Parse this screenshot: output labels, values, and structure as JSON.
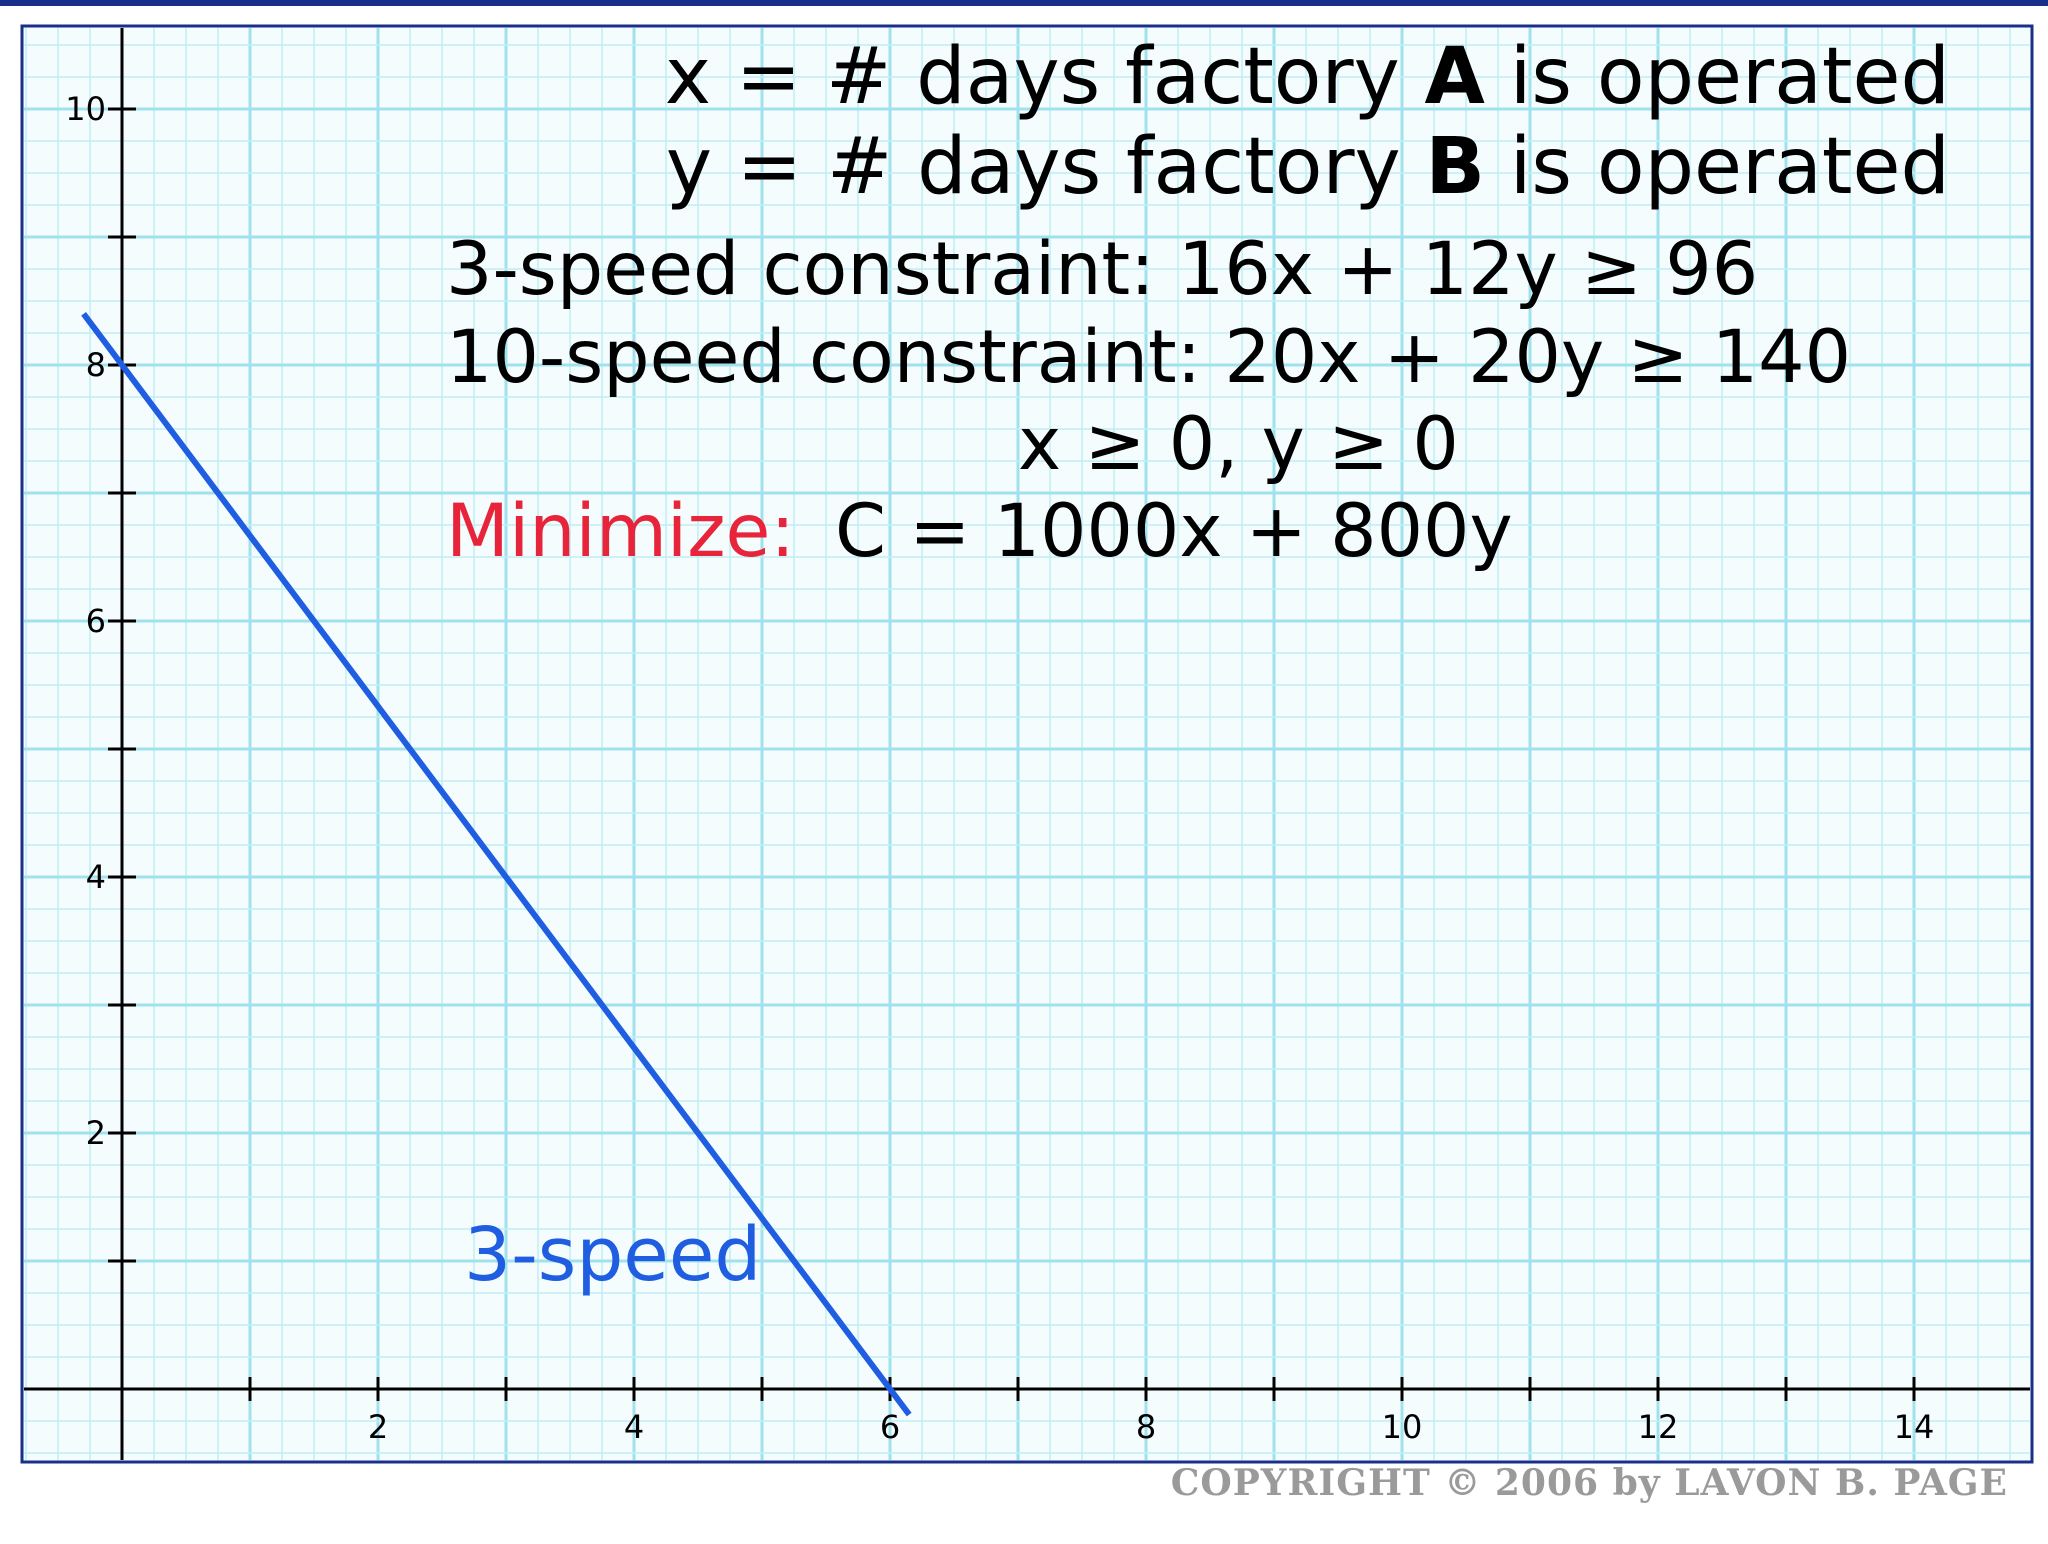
{
  "chart_data": {
    "type": "line",
    "x_ticks": [
      2,
      4,
      6,
      8,
      10,
      12,
      14
    ],
    "y_ticks": [
      2,
      4,
      6,
      8,
      10
    ],
    "xlim": [
      -0.8,
      14.9
    ],
    "ylim": [
      -0.6,
      10.6
    ],
    "grid": true,
    "series": [
      {
        "name": "3-speed",
        "color": "#1f5ee0",
        "points": [
          [
            -0.3,
            8.4
          ],
          [
            6.15,
            -0.2
          ]
        ]
      }
    ],
    "annotations": {
      "var_x": {
        "pre": "x = # days factory ",
        "bold": "A",
        "post": " is operated"
      },
      "var_y": {
        "pre": "y = # days factory ",
        "bold": "B",
        "post": " is operated"
      },
      "constraint_3speed": "3-speed constraint: 16x + 12y ≥ 96",
      "constraint_10speed": "10-speed constraint: 20x + 20y ≥ 140",
      "nonneg": "x ≥ 0, y ≥ 0",
      "objective_label": "Minimize:",
      "objective_expr": "C = 1000x + 800y",
      "line_label": "3-speed"
    },
    "colors": {
      "grid_fine": "#bfeff5",
      "grid_major": "#9fe2ee",
      "axis": "#000000",
      "frame": "#1a2f8a",
      "label_red": "#e8243a",
      "line_blue": "#1f5ee0"
    }
  },
  "copyright": "COPYRIGHT © 2006 by LAVON B. PAGE"
}
